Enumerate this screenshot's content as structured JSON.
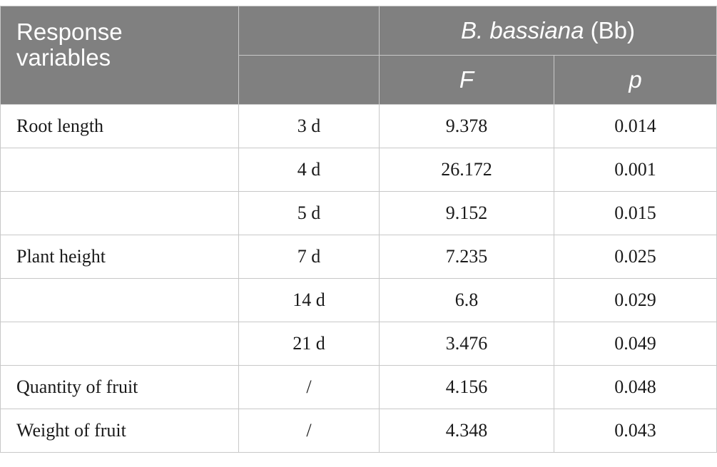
{
  "header": {
    "response_line1": "Response",
    "response_line2": "variables",
    "bb_species": "B. bassiana",
    "bb_abbrev": " (Bb)",
    "col_f": "F",
    "col_p": "p"
  },
  "rows": [
    {
      "variable": "Root length",
      "time": "3 d",
      "f": "9.378",
      "p": "0.014"
    },
    {
      "variable": "",
      "time": "4 d",
      "f": "26.172",
      "p": "0.001"
    },
    {
      "variable": "",
      "time": "5 d",
      "f": "9.152",
      "p": "0.015"
    },
    {
      "variable": "Plant height",
      "time": "7 d",
      "f": "7.235",
      "p": "0.025"
    },
    {
      "variable": "",
      "time": "14 d",
      "f": "6.8",
      "p": "0.029"
    },
    {
      "variable": "",
      "time": "21 d",
      "f": "3.476",
      "p": "0.049"
    },
    {
      "variable": "Quantity of fruit",
      "time": "/",
      "f": "4.156",
      "p": "0.048"
    },
    {
      "variable": "Weight of fruit",
      "time": "/",
      "f": "4.348",
      "p": "0.043"
    }
  ],
  "colors": {
    "header_bg": "#808080",
    "header_text": "#ffffff",
    "border": "#c8c8c8",
    "body_text": "#1a1a1a"
  }
}
